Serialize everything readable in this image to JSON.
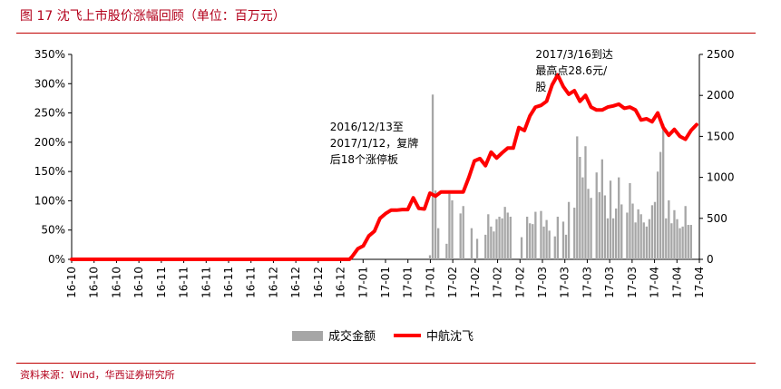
{
  "header": {
    "title": "图 17  沈飞上市股价涨幅回顾（单位：百万元）"
  },
  "footer": {
    "source": "资料来源：Wind，华西证券研究所"
  },
  "chart_data": {
    "type": "bar+line",
    "y_left": {
      "min": 0,
      "max": 3.5,
      "ticks": [
        "0%",
        "50%",
        "100%",
        "150%",
        "200%",
        "250%",
        "300%",
        "350%"
      ]
    },
    "y_right": {
      "min": 0,
      "max": 2500,
      "ticks": [
        "0",
        "500",
        "1000",
        "1500",
        "2000",
        "2500"
      ]
    },
    "x_ticks": [
      "16-10",
      "16-10",
      "16-10",
      "16-10",
      "16-11",
      "16-11",
      "16-11",
      "16-11",
      "16-11",
      "16-12",
      "16-12",
      "16-12",
      "16-12",
      "17-01",
      "17-01",
      "17-01",
      "17-01",
      "17-02",
      "17-02",
      "17-02",
      "17-02",
      "17-03",
      "17-03",
      "17-03",
      "17-03",
      "17-03",
      "17-04",
      "17-04",
      "17-04"
    ],
    "legend_position": "bottom",
    "colors": {
      "bar": "#a6a6a6",
      "line": "#ff0000"
    },
    "series": [
      {
        "name": "成交金额",
        "kind": "bar",
        "axis": "right",
        "x": [
          129,
          130,
          131,
          132,
          135,
          136,
          137,
          140,
          141,
          144,
          146,
          149,
          150,
          151,
          152,
          153,
          154,
          155,
          156,
          157,
          158,
          162,
          164,
          165,
          166,
          167,
          169,
          170,
          171,
          172,
          174,
          175,
          177,
          178,
          179,
          181,
          182,
          183,
          184,
          185,
          186,
          187,
          189,
          190,
          191,
          192,
          193,
          194,
          195,
          196,
          197,
          198,
          200,
          201,
          202,
          203,
          204,
          205,
          206,
          207,
          208,
          209,
          210,
          211,
          212,
          213,
          214,
          215,
          216,
          217,
          218,
          219,
          220,
          221,
          222,
          223
        ],
        "values": [
          50,
          2010,
          840,
          380,
          190,
          800,
          720,
          560,
          650,
          380,
          250,
          300,
          550,
          400,
          340,
          490,
          520,
          500,
          640,
          570,
          520,
          270,
          520,
          440,
          430,
          580,
          590,
          400,
          480,
          350,
          280,
          520,
          460,
          300,
          700,
          630,
          1500,
          1250,
          1000,
          1380,
          860,
          750,
          1060,
          820,
          1220,
          780,
          500,
          960,
          500,
          620,
          1000,
          670,
          570,
          930,
          680,
          450,
          610,
          550,
          450,
          400,
          490,
          660,
          700,
          1070,
          1310,
          1650,
          500,
          720,
          440,
          600,
          490,
          380,
          400,
          650,
          420,
          420
        ]
      },
      {
        "name": "中航沈飞",
        "kind": "line",
        "axis": "left",
        "x": [
          0,
          8,
          16,
          24,
          32,
          40,
          48,
          56,
          64,
          72,
          80,
          88,
          96,
          100,
          101,
          103,
          105,
          107,
          109,
          111,
          113,
          115,
          117,
          119,
          121,
          123,
          125,
          127,
          129,
          131,
          133,
          135,
          137,
          139,
          141,
          143,
          145,
          147,
          149,
          151,
          153,
          155,
          157,
          159,
          161,
          163,
          165,
          167,
          169,
          171,
          173,
          175,
          177,
          179,
          181,
          183,
          185,
          187,
          189,
          191,
          193,
          195,
          197,
          199,
          201,
          203,
          205,
          207,
          209,
          211,
          213,
          215,
          217,
          219,
          221,
          223,
          225
        ],
        "values": [
          0,
          0,
          0,
          0,
          0,
          0,
          0,
          0,
          0,
          0,
          0,
          0,
          0,
          0,
          0.05,
          0.18,
          0.23,
          0.4,
          0.48,
          0.7,
          0.78,
          0.84,
          0.84,
          0.85,
          0.85,
          1.05,
          0.87,
          0.86,
          1.13,
          1.08,
          1.15,
          1.15,
          1.15,
          1.15,
          1.15,
          1.4,
          1.68,
          1.72,
          1.6,
          1.83,
          1.73,
          1.82,
          1.9,
          1.9,
          2.25,
          2.2,
          2.45,
          2.6,
          2.63,
          2.7,
          2.98,
          3.15,
          2.95,
          2.82,
          2.88,
          2.7,
          2.8,
          2.6,
          2.55,
          2.55,
          2.6,
          2.62,
          2.65,
          2.58,
          2.6,
          2.55,
          2.38,
          2.4,
          2.35,
          2.5,
          2.25,
          2.12,
          2.22,
          2.1,
          2.05,
          2.2,
          2.3
        ]
      }
    ],
    "annotations": [
      {
        "lines": [
          "2016/12/13至",
          "2017/1/12，复牌",
          "后18个涨停板"
        ]
      },
      {
        "lines": [
          "2017/3/16到达",
          "最高点28.6元/",
          "股"
        ]
      }
    ]
  }
}
